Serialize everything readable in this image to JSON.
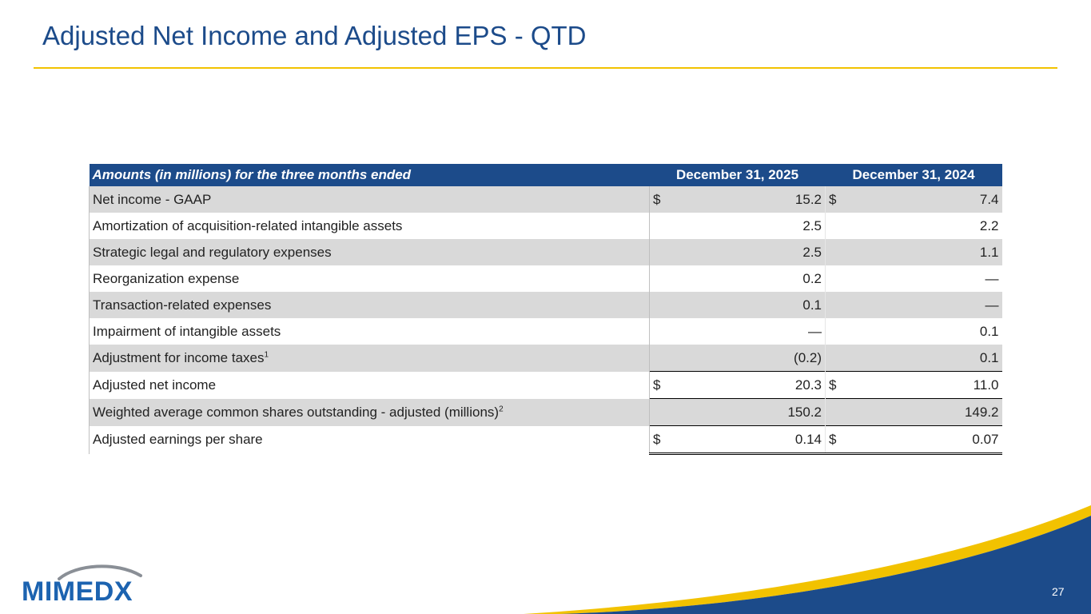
{
  "slide": {
    "title": "Adjusted Net Income and Adjusted EPS - QTD",
    "page_number": "27",
    "logo_text": "MIMEDX"
  },
  "colors": {
    "title": "#1c4b8a",
    "accent": "#f2c200",
    "header_bg": "#1c4b8a",
    "row_shade": "#d9d9d9",
    "logo": "#1c63b0"
  },
  "table": {
    "header": {
      "label": "Amounts (in millions) for the three months ended",
      "col1": "December 31, 2025",
      "col2": "December 31, 2024"
    },
    "rows": [
      {
        "label": "Net income - GAAP",
        "sup": "",
        "sym1": "$",
        "v1": "15.2",
        "sym2": "$",
        "v2": "7.4"
      },
      {
        "label": "Amortization of acquisition-related intangible assets",
        "sup": "",
        "sym1": "",
        "v1": "2.5",
        "sym2": "",
        "v2": "2.2"
      },
      {
        "label": "Strategic legal and regulatory expenses",
        "sup": "",
        "sym1": "",
        "v1": "2.5",
        "sym2": "",
        "v2": "1.1"
      },
      {
        "label": "Reorganization expense",
        "sup": "",
        "sym1": "",
        "v1": "0.2",
        "sym2": "",
        "v2": "—"
      },
      {
        "label": "Transaction-related expenses",
        "sup": "",
        "sym1": "",
        "v1": "0.1",
        "sym2": "",
        "v2": "—"
      },
      {
        "label": "Impairment of intangible assets",
        "sup": "",
        "sym1": "",
        "v1": "—",
        "sym2": "",
        "v2": "0.1"
      },
      {
        "label": "Adjustment for income taxes",
        "sup": "1",
        "sym1": "",
        "v1": "(0.2)",
        "sym2": "",
        "v2": "0.1"
      },
      {
        "label": "Adjusted net income",
        "sup": "",
        "sym1": "$",
        "v1": "20.3",
        "sym2": "$",
        "v2": "11.0"
      },
      {
        "label": "Weighted average common shares outstanding - adjusted (millions)",
        "sup": "2",
        "sym1": "",
        "v1": "150.2",
        "sym2": "",
        "v2": "149.2"
      },
      {
        "label": "Adjusted earnings per share",
        "sup": "",
        "sym1": "$",
        "v1": "0.14",
        "sym2": "$",
        "v2": "0.07"
      }
    ]
  }
}
